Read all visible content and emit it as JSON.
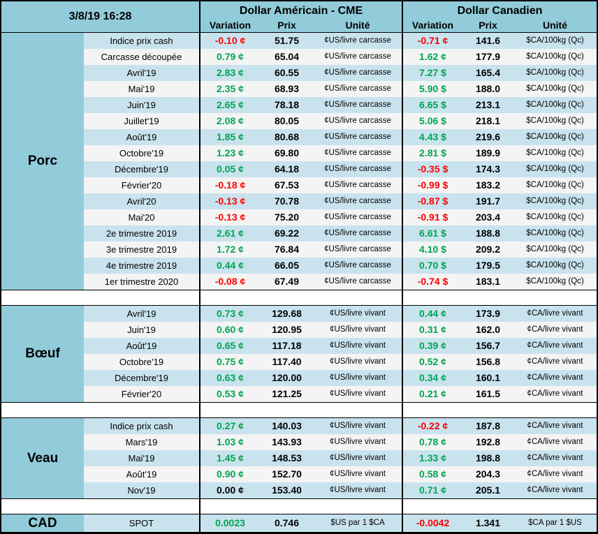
{
  "meta": {
    "timestamp": "3/8/19 16:28"
  },
  "header": {
    "us": {
      "title": "Dollar Américain - CME",
      "cols": [
        "Variation",
        "Prix",
        "Unité"
      ]
    },
    "ca": {
      "title": "Dollar Canadien",
      "cols": [
        "Variation",
        "Prix",
        "Unité"
      ]
    }
  },
  "colors": {
    "positive": "#00A550",
    "negative": "#FF0000",
    "neutral": "#000000",
    "section_bg": "#92CBD9",
    "stripe_blue": "#C9E3EE",
    "stripe_white": "#F4F4F4"
  },
  "sections": [
    {
      "name": "Porc",
      "rows": [
        {
          "label": "Indice prix cash",
          "us_var": "-0.10",
          "us_var_unit": "¢",
          "us_prix": "51.75",
          "us_unit": "¢US/livre carcasse",
          "ca_var": "-0.71",
          "ca_var_unit": "¢",
          "ca_prix": "141.6",
          "ca_unit": "$CA/100kg (Qc)"
        },
        {
          "label": "Carcasse découpée",
          "us_var": "0.79",
          "us_var_unit": "¢",
          "us_prix": "65.04",
          "us_unit": "¢US/livre carcasse",
          "ca_var": "1.62",
          "ca_var_unit": "¢",
          "ca_prix": "177.9",
          "ca_unit": "$CA/100kg (Qc)"
        },
        {
          "label": "Avril'19",
          "us_var": "2.83",
          "us_var_unit": "¢",
          "us_prix": "60.55",
          "us_unit": "¢US/livre carcasse",
          "ca_var": "7.27",
          "ca_var_unit": "$",
          "ca_prix": "165.4",
          "ca_unit": "$CA/100kg (Qc)"
        },
        {
          "label": "Mai'19",
          "us_var": "2.35",
          "us_var_unit": "¢",
          "us_prix": "68.93",
          "us_unit": "¢US/livre carcasse",
          "ca_var": "5.90",
          "ca_var_unit": "$",
          "ca_prix": "188.0",
          "ca_unit": "$CA/100kg (Qc)"
        },
        {
          "label": "Juin'19",
          "us_var": "2.65",
          "us_var_unit": "¢",
          "us_prix": "78.18",
          "us_unit": "¢US/livre carcasse",
          "ca_var": "6.65",
          "ca_var_unit": "$",
          "ca_prix": "213.1",
          "ca_unit": "$CA/100kg (Qc)"
        },
        {
          "label": "Juillet'19",
          "us_var": "2.08",
          "us_var_unit": "¢",
          "us_prix": "80.05",
          "us_unit": "¢US/livre carcasse",
          "ca_var": "5.06",
          "ca_var_unit": "$",
          "ca_prix": "218.1",
          "ca_unit": "$CA/100kg (Qc)"
        },
        {
          "label": "Août'19",
          "us_var": "1.85",
          "us_var_unit": "¢",
          "us_prix": "80.68",
          "us_unit": "¢US/livre carcasse",
          "ca_var": "4.43",
          "ca_var_unit": "$",
          "ca_prix": "219.6",
          "ca_unit": "$CA/100kg (Qc)"
        },
        {
          "label": "Octobre'19",
          "us_var": "1.23",
          "us_var_unit": "¢",
          "us_prix": "69.80",
          "us_unit": "¢US/livre carcasse",
          "ca_var": "2.81",
          "ca_var_unit": "$",
          "ca_prix": "189.9",
          "ca_unit": "$CA/100kg (Qc)"
        },
        {
          "label": "Décembre'19",
          "us_var": "0.05",
          "us_var_unit": "¢",
          "us_prix": "64.18",
          "us_unit": "¢US/livre carcasse",
          "ca_var": "-0.35",
          "ca_var_unit": "$",
          "ca_prix": "174.3",
          "ca_unit": "$CA/100kg (Qc)"
        },
        {
          "label": "Février'20",
          "us_var": "-0.18",
          "us_var_unit": "¢",
          "us_prix": "67.53",
          "us_unit": "¢US/livre carcasse",
          "ca_var": "-0.99",
          "ca_var_unit": "$",
          "ca_prix": "183.2",
          "ca_unit": "$CA/100kg (Qc)"
        },
        {
          "label": "Avril'20",
          "us_var": "-0.13",
          "us_var_unit": "¢",
          "us_prix": "70.78",
          "us_unit": "¢US/livre carcasse",
          "ca_var": "-0.87",
          "ca_var_unit": "$",
          "ca_prix": "191.7",
          "ca_unit": "$CA/100kg (Qc)"
        },
        {
          "label": "Mai'20",
          "us_var": "-0.13",
          "us_var_unit": "¢",
          "us_prix": "75.20",
          "us_unit": "¢US/livre carcasse",
          "ca_var": "-0.91",
          "ca_var_unit": "$",
          "ca_prix": "203.4",
          "ca_unit": "$CA/100kg (Qc)"
        },
        {
          "label": "2e trimestre 2019",
          "us_var": "2.61",
          "us_var_unit": "¢",
          "us_prix": "69.22",
          "us_unit": "¢US/livre carcasse",
          "ca_var": "6.61",
          "ca_var_unit": "$",
          "ca_prix": "188.8",
          "ca_unit": "$CA/100kg (Qc)"
        },
        {
          "label": "3e trimestre 2019",
          "us_var": "1.72",
          "us_var_unit": "¢",
          "us_prix": "76.84",
          "us_unit": "¢US/livre carcasse",
          "ca_var": "4.10",
          "ca_var_unit": "$",
          "ca_prix": "209.2",
          "ca_unit": "$CA/100kg (Qc)"
        },
        {
          "label": "4e trimestre 2019",
          "us_var": "0.44",
          "us_var_unit": "¢",
          "us_prix": "66.05",
          "us_unit": "¢US/livre carcasse",
          "ca_var": "0.70",
          "ca_var_unit": "$",
          "ca_prix": "179.5",
          "ca_unit": "$CA/100kg (Qc)"
        },
        {
          "label": "1er trimestre 2020",
          "us_var": "-0.08",
          "us_var_unit": "¢",
          "us_prix": "67.49",
          "us_unit": "¢US/livre carcasse",
          "ca_var": "-0.74",
          "ca_var_unit": "$",
          "ca_prix": "183.1",
          "ca_unit": "$CA/100kg (Qc)"
        }
      ]
    },
    {
      "name": "Bœuf",
      "rows": [
        {
          "label": "Avril'19",
          "us_var": "0.73",
          "us_var_unit": "¢",
          "us_prix": "129.68",
          "us_unit": "¢US/livre vivant",
          "ca_var": "0.44",
          "ca_var_unit": "¢",
          "ca_prix": "173.9",
          "ca_unit": "¢CA/livre vivant"
        },
        {
          "label": "Juin'19",
          "us_var": "0.60",
          "us_var_unit": "¢",
          "us_prix": "120.95",
          "us_unit": "¢US/livre vivant",
          "ca_var": "0.31",
          "ca_var_unit": "¢",
          "ca_prix": "162.0",
          "ca_unit": "¢CA/livre vivant"
        },
        {
          "label": "Août'19",
          "us_var": "0.65",
          "us_var_unit": "¢",
          "us_prix": "117.18",
          "us_unit": "¢US/livre vivant",
          "ca_var": "0.39",
          "ca_var_unit": "¢",
          "ca_prix": "156.7",
          "ca_unit": "¢CA/livre vivant"
        },
        {
          "label": "Octobre'19",
          "us_var": "0.75",
          "us_var_unit": "¢",
          "us_prix": "117.40",
          "us_unit": "¢US/livre vivant",
          "ca_var": "0.52",
          "ca_var_unit": "¢",
          "ca_prix": "156.8",
          "ca_unit": "¢CA/livre vivant"
        },
        {
          "label": "Décembre'19",
          "us_var": "0.63",
          "us_var_unit": "¢",
          "us_prix": "120.00",
          "us_unit": "¢US/livre vivant",
          "ca_var": "0.34",
          "ca_var_unit": "¢",
          "ca_prix": "160.1",
          "ca_unit": "¢CA/livre vivant"
        },
        {
          "label": "Février'20",
          "us_var": "0.53",
          "us_var_unit": "¢",
          "us_prix": "121.25",
          "us_unit": "¢US/livre vivant",
          "ca_var": "0.21",
          "ca_var_unit": "¢",
          "ca_prix": "161.5",
          "ca_unit": "¢CA/livre vivant"
        }
      ]
    },
    {
      "name": "Veau",
      "rows": [
        {
          "label": "Indice prix cash",
          "us_var": "0.27",
          "us_var_unit": "¢",
          "us_prix": "140.03",
          "us_unit": "¢US/livre vivant",
          "ca_var": "-0.22",
          "ca_var_unit": "¢",
          "ca_prix": "187.8",
          "ca_unit": "¢CA/livre vivant"
        },
        {
          "label": "Mars'19",
          "us_var": "1.03",
          "us_var_unit": "¢",
          "us_prix": "143.93",
          "us_unit": "¢US/livre vivant",
          "ca_var": "0.78",
          "ca_var_unit": "¢",
          "ca_prix": "192.8",
          "ca_unit": "¢CA/livre vivant"
        },
        {
          "label": "Mai'19",
          "us_var": "1.45",
          "us_var_unit": "¢",
          "us_prix": "148.53",
          "us_unit": "¢US/livre vivant",
          "ca_var": "1.33",
          "ca_var_unit": "¢",
          "ca_prix": "198.8",
          "ca_unit": "¢CA/livre vivant"
        },
        {
          "label": "Août'19",
          "us_var": "0.90",
          "us_var_unit": "¢",
          "us_prix": "152.70",
          "us_unit": "¢US/livre vivant",
          "ca_var": "0.58",
          "ca_var_unit": "¢",
          "ca_prix": "204.3",
          "ca_unit": "¢CA/livre vivant"
        },
        {
          "label": "Nov'19",
          "us_var": "0.00",
          "us_var_unit": "¢",
          "us_prix": "153.40",
          "us_unit": "¢US/livre vivant",
          "ca_var": "0.71",
          "ca_var_unit": "¢",
          "ca_prix": "205.1",
          "ca_unit": "¢CA/livre vivant"
        }
      ]
    },
    {
      "name": "CAD",
      "rows": [
        {
          "label": "SPOT",
          "us_var": "0.0023",
          "us_var_unit": "",
          "us_prix": "0.746",
          "us_unit": "$US par 1 $CA",
          "ca_var": "-0.0042",
          "ca_var_unit": "",
          "ca_prix": "1.341",
          "ca_unit": "$CA par 1 $US"
        }
      ]
    }
  ]
}
